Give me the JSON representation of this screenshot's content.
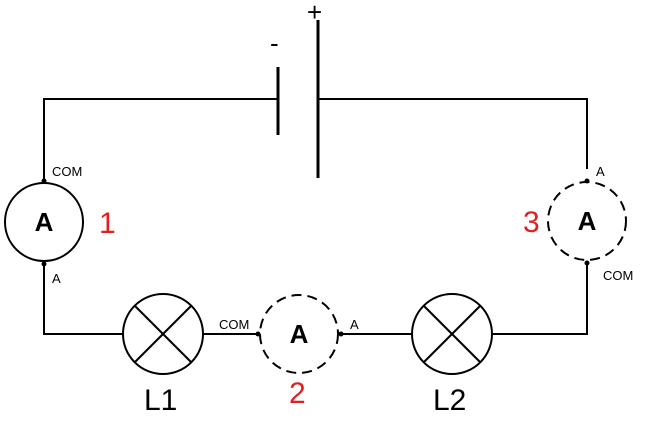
{
  "colors": {
    "line": "#000000",
    "position_number": "#e02020"
  },
  "battery": {
    "negative_sign": "-",
    "positive_sign": "+"
  },
  "meters": {
    "symbol": "A",
    "left": {
      "number": "1",
      "top_terminal": "COM",
      "bottom_terminal": "A",
      "style": "solid"
    },
    "middle": {
      "number": "2",
      "left_terminal": "COM",
      "right_terminal": "A",
      "style": "dashed"
    },
    "right": {
      "number": "3",
      "top_terminal": "A",
      "bottom_terminal": "COM",
      "style": "dashed"
    }
  },
  "lamps": {
    "left": {
      "label": "L1"
    },
    "right": {
      "label": "L2"
    }
  }
}
